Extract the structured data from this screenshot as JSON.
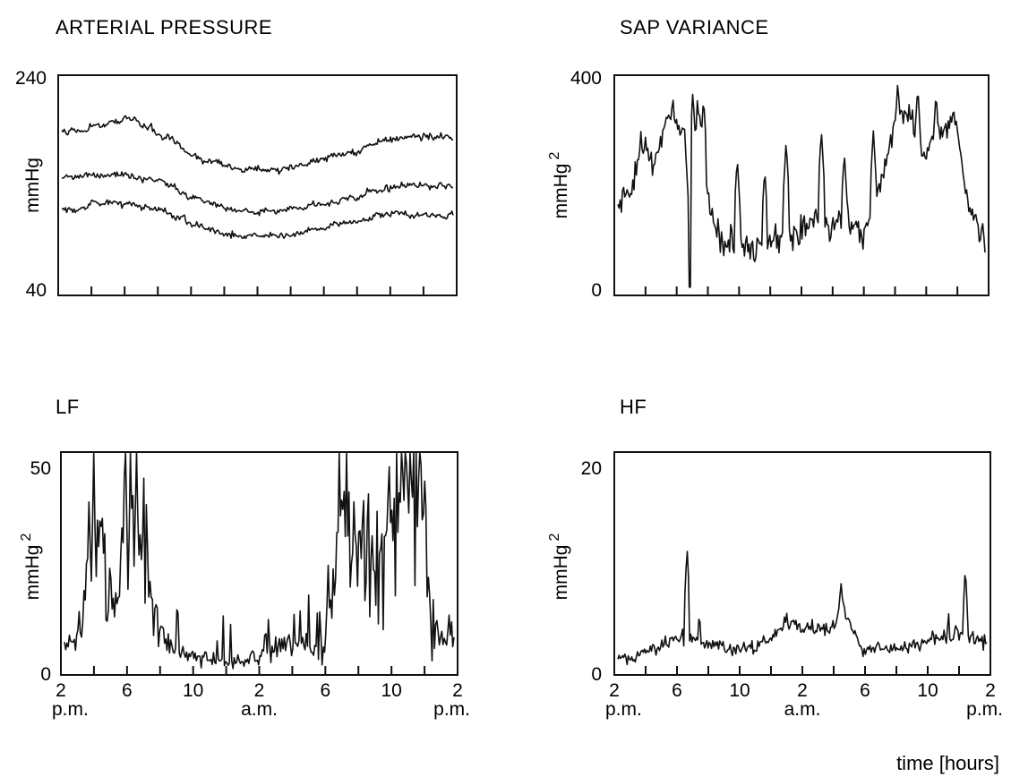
{
  "chart_data": [
    {
      "type": "line",
      "title": "ARTERIAL PRESSURE",
      "ylabel": "mmHg",
      "ylabel_superscript": "",
      "ylim": [
        40,
        240
      ],
      "yticks": [
        "240",
        "40"
      ],
      "xlim": [
        0,
        24
      ],
      "x_tick_count": 12,
      "xtick_labels": [],
      "sublabels": [],
      "series": [
        {
          "name": "",
          "style": "sbp",
          "approx_range": [
            150,
            205
          ]
        },
        {
          "name": "",
          "style": "map",
          "approx_range": [
            105,
            150
          ]
        },
        {
          "name": "",
          "style": "dbp",
          "approx_range": [
            90,
            130
          ]
        }
      ]
    },
    {
      "type": "line",
      "title": "SAP VARIANCE",
      "ylabel": "mmHg",
      "ylabel_superscript": "2",
      "ylim": [
        0,
        400
      ],
      "yticks": [
        "400",
        "0"
      ],
      "xlim": [
        0,
        24
      ],
      "x_tick_count": 12,
      "xtick_labels": [],
      "sublabels": [],
      "series": [
        {
          "name": "",
          "style": "sapvar",
          "approx_range": [
            10,
            390
          ]
        }
      ]
    },
    {
      "type": "line",
      "title": "LF",
      "ylabel": "mmHg",
      "ylabel_superscript": "2",
      "ylim": [
        0,
        50
      ],
      "yticks": [
        "50",
        "0"
      ],
      "xlim": [
        0,
        24
      ],
      "x_tick_count": 12,
      "xtick_labels": [
        {
          "t": 0,
          "label": "2"
        },
        {
          "t": 4,
          "label": "6"
        },
        {
          "t": 8,
          "label": "10"
        },
        {
          "t": 12,
          "label": "2"
        },
        {
          "t": 16,
          "label": "6"
        },
        {
          "t": 20,
          "label": "10"
        },
        {
          "t": 24,
          "label": "2"
        }
      ],
      "sublabels": [
        {
          "t": 0,
          "label": "p.m."
        },
        {
          "t": 12,
          "label": "a.m."
        },
        {
          "t": 24,
          "label": "p.m."
        }
      ],
      "series": [
        {
          "name": "",
          "style": "lf",
          "approx_range": [
            0,
            50
          ]
        }
      ]
    },
    {
      "type": "line",
      "title": "HF",
      "ylabel": "mmHg",
      "ylabel_superscript": "2",
      "ylim": [
        0,
        20
      ],
      "yticks": [
        "20",
        "0"
      ],
      "xlim": [
        0,
        24
      ],
      "x_tick_count": 12,
      "xtick_labels": [
        {
          "t": 0,
          "label": "2"
        },
        {
          "t": 4,
          "label": "6"
        },
        {
          "t": 8,
          "label": "10"
        },
        {
          "t": 12,
          "label": "2"
        },
        {
          "t": 16,
          "label": "6"
        },
        {
          "t": 20,
          "label": "10"
        },
        {
          "t": 24,
          "label": "2"
        }
      ],
      "sublabels": [
        {
          "t": 0,
          "label": "p.m."
        },
        {
          "t": 12,
          "label": "a.m."
        },
        {
          "t": 24,
          "label": "p.m."
        }
      ],
      "series": [
        {
          "name": "",
          "style": "hf",
          "approx_range": [
            1,
            11
          ]
        }
      ]
    }
  ],
  "footer": {
    "xlabel": "time [hours]"
  },
  "colors": {
    "ink": "#111111",
    "background": "#ffffff"
  }
}
